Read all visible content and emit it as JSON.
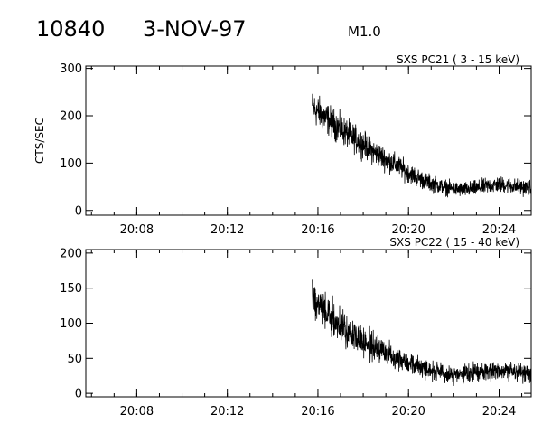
{
  "header": {
    "flare_id": "10840",
    "date": "3-NOV-97",
    "goes_class": "M1.0"
  },
  "chart_data": [
    {
      "type": "line",
      "title": "SXS PC21  (  3 - 15 keV)",
      "ylabel": "CTS/SEC",
      "xlabel": "",
      "x_range": [
        "20:05:45",
        "20:25:25"
      ],
      "ylim": [
        -10,
        305
      ],
      "y_ticks": [
        0,
        100,
        200,
        300
      ],
      "x_ticks": [
        "20:08",
        "20:12",
        "20:16",
        "20:20",
        "20:24"
      ],
      "grid": false,
      "series": [
        {
          "x": [
            "20:15:45",
            "20:16:00",
            "20:16:30",
            "20:17:00",
            "20:17:30",
            "20:18:00",
            "20:18:30",
            "20:19:00",
            "20:19:30",
            "20:20:00",
            "20:20:30",
            "20:21:00",
            "20:21:30",
            "20:22:00",
            "20:22:30",
            "20:23:00",
            "20:23:30",
            "20:24:00",
            "20:24:30",
            "20:25:00",
            "20:25:25"
          ],
          "values": [
            218,
            208,
            190,
            172,
            155,
            140,
            122,
            108,
            95,
            80,
            67,
            57,
            50,
            45,
            44,
            47,
            52,
            55,
            52,
            49,
            47
          ]
        }
      ]
    },
    {
      "type": "line",
      "title": "SXS PC22  ( 15 - 40 keV)",
      "ylabel": "",
      "xlabel": "",
      "x_range": [
        "20:05:45",
        "20:25:25"
      ],
      "ylim": [
        -5,
        205
      ],
      "y_ticks": [
        0,
        50,
        100,
        150,
        200
      ],
      "x_ticks": [
        "20:08",
        "20:12",
        "20:16",
        "20:20",
        "20:24"
      ],
      "grid": false,
      "series": [
        {
          "x": [
            "20:15:45",
            "20:16:00",
            "20:16:30",
            "20:17:00",
            "20:17:30",
            "20:18:00",
            "20:18:30",
            "20:19:00",
            "20:19:30",
            "20:20:00",
            "20:20:30",
            "20:21:00",
            "20:21:30",
            "20:22:00",
            "20:22:30",
            "20:23:00",
            "20:23:30",
            "20:24:00",
            "20:24:30",
            "20:25:00",
            "20:25:25"
          ],
          "values": [
            138,
            128,
            110,
            96,
            84,
            74,
            65,
            58,
            51,
            45,
            38,
            33,
            28,
            26,
            27,
            30,
            33,
            33,
            32,
            29,
            27
          ]
        }
      ]
    }
  ]
}
